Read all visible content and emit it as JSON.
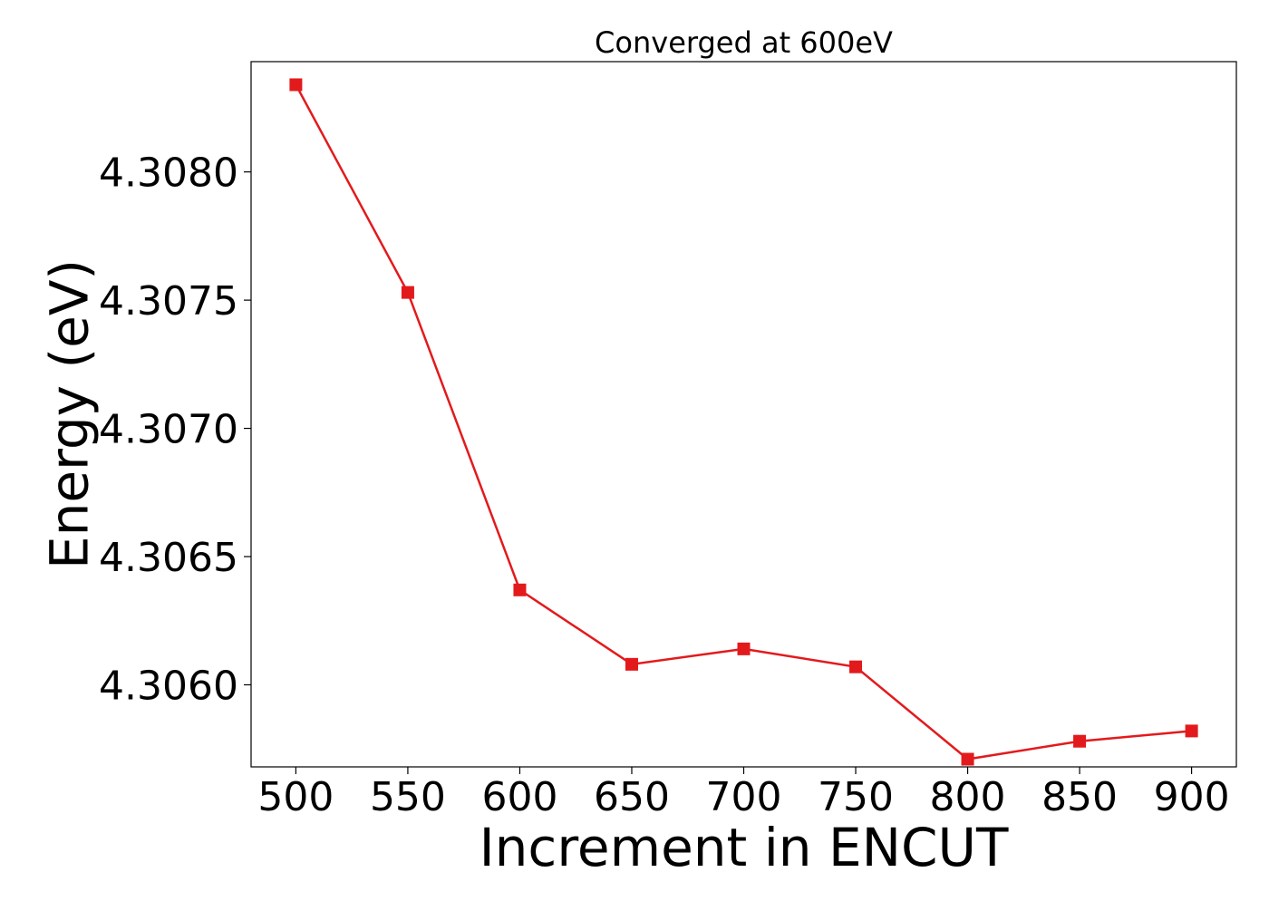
{
  "chart_data": {
    "type": "line",
    "title": "Converged at 600eV",
    "xlabel": "Increment in ENCUT",
    "ylabel": "Energy (eV)",
    "x": [
      500,
      550,
      600,
      650,
      700,
      750,
      800,
      850,
      900
    ],
    "x_tick_labels": [
      "500",
      "550",
      "600",
      "650",
      "700",
      "750",
      "800",
      "850",
      "900"
    ],
    "y_ticks": [
      4.306,
      4.3065,
      4.307,
      4.3075,
      4.308
    ],
    "y_tick_labels": [
      "4.3060",
      "4.3065",
      "4.3070",
      "4.3075",
      "4.3080"
    ],
    "xlim": [
      480,
      920
    ],
    "ylim": [
      4.30568,
      4.30843
    ],
    "series": [
      {
        "values": [
          4.30834,
          4.30753,
          4.30637,
          4.30608,
          4.30614,
          4.30607,
          4.30571,
          4.30578,
          4.30582
        ],
        "color": "#e31a1c",
        "marker": "square"
      }
    ],
    "grid": false,
    "legend": false
  }
}
